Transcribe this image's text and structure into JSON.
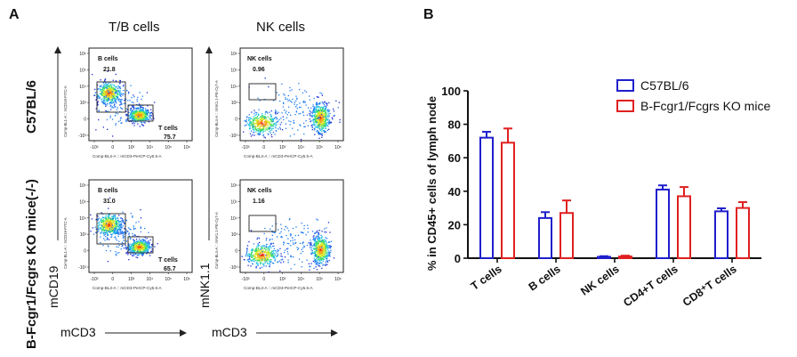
{
  "panel_a": {
    "letter": "A",
    "col_titles": [
      "T/B cells",
      "NK cells"
    ],
    "row_labels": [
      "C57BL/6",
      "B-Fcgr1/Fcgrs KO mice(-/-)"
    ],
    "y_axis_titles": [
      "mCD19",
      "mNK1.1"
    ],
    "x_axis_titles": [
      "mCD3",
      "mCD3"
    ],
    "plots": [
      {
        "gate1_name": "B cells",
        "gate1_value": "21.8",
        "gate2_name": "T cells",
        "gate2_value": "75.7",
        "x_param": "Comp-BL3-A :: mCD3-PerCP-Cy5.5-A",
        "y_param": "Comp-BL1-A :: mCD19-FITC-A"
      },
      {
        "gate1_name": "NK cells",
        "gate1_value": "0.96",
        "x_param": "Comp-BL3-A :: mCD3-PerCP-Cy5.5-A",
        "y_param": "Comp-BL4-A :: mNK1.1-PE-Cy7-A"
      },
      {
        "gate1_name": "B cells",
        "gate1_value": "31.0",
        "gate2_name": "T cells",
        "gate2_value": "65.7",
        "x_param": "Comp-BL3-A :: mCD3-PerCP-Cy5.5-A",
        "y_param": "Comp-BL1-A :: mCD19-FITC-A"
      },
      {
        "gate1_name": "NK cells",
        "gate1_value": "1.16",
        "x_param": "Comp-BL3-A :: mCD3-PerCP-Cy5.5-A",
        "y_param": "Comp-BL4-A :: mNK1.1-PE-Cy7-A"
      }
    ],
    "x_ticks": [
      "-10³",
      "0",
      "10³",
      "10⁴",
      "10⁵",
      "10⁶"
    ],
    "y_ticks": [
      "10⁶",
      "10⁵",
      "10⁴",
      "10³",
      "0",
      "-10³"
    ]
  },
  "panel_b": {
    "letter": "B",
    "legend_position": "top-right"
  },
  "colors": {
    "c57": "#1f1fcc",
    "ko": "#e02020"
  },
  "chart_data": {
    "type": "bar",
    "categories": [
      "T cells",
      "B cells",
      "NK cells",
      "CD4+T cells",
      "CD8⁺T cells"
    ],
    "series": [
      {
        "name": "C57BL/6",
        "values": [
          72,
          24,
          0.8,
          41,
          28
        ],
        "errors": [
          3.5,
          3.5,
          0.4,
          2.5,
          1.8
        ],
        "color": "#1f1fcc"
      },
      {
        "name": "B-Fcgr1/Fcgrs KO mice",
        "values": [
          69,
          27,
          1.0,
          37,
          30
        ],
        "errors": [
          8.5,
          7.5,
          0.5,
          5.5,
          3.5
        ],
        "color": "#e02020"
      }
    ],
    "ylabel": "% in CD45+ cells of lymph node",
    "ylim": [
      0,
      100
    ],
    "yticks": [
      "0",
      "20",
      "40",
      "60",
      "80",
      "100"
    ],
    "grid": false,
    "legend_position": "top-right"
  }
}
